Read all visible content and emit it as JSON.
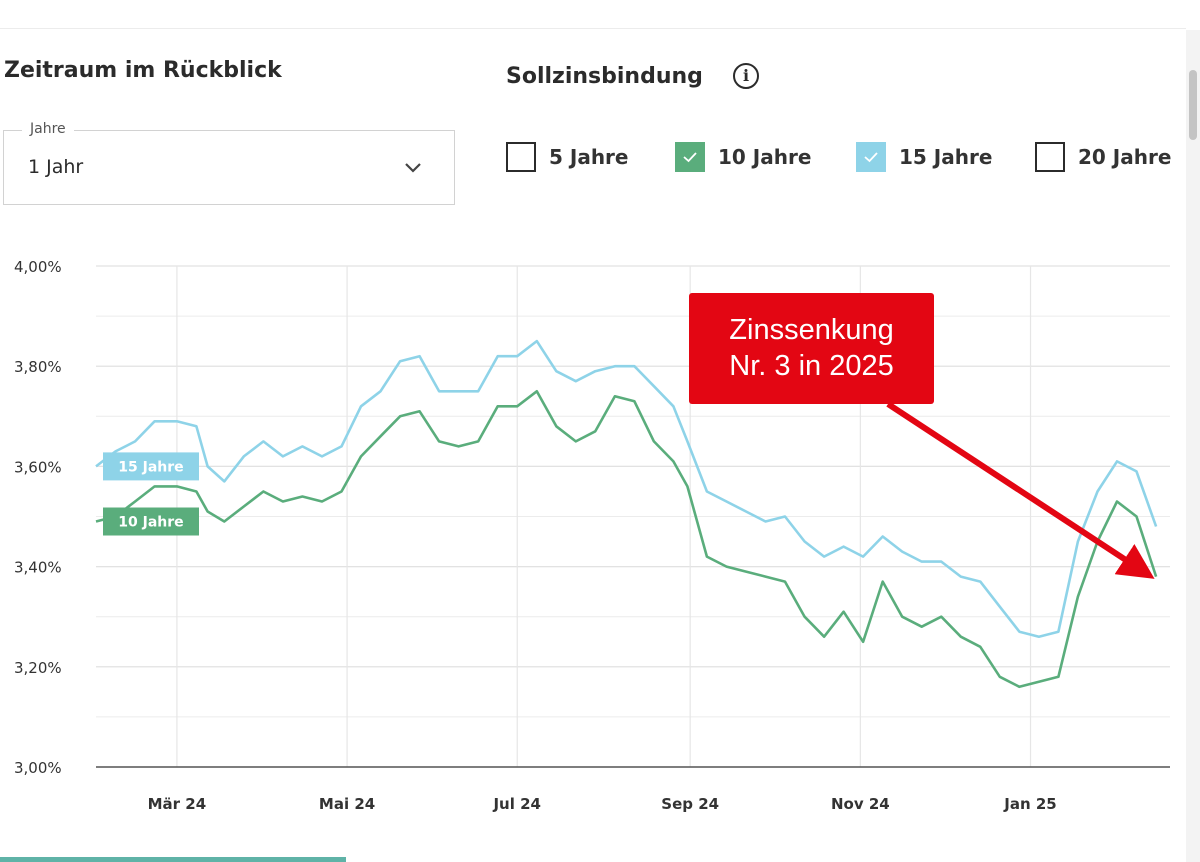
{
  "filters": {
    "period_title": "Zeitraum im Rückblick",
    "period_select": {
      "label": "Jahre",
      "value": "1 Jahr"
    },
    "fixation_title": "Sollzinsbindung",
    "info_icon": "info-icon",
    "options": [
      {
        "label": "5 Jahre",
        "checked": false,
        "color": "#ffffff"
      },
      {
        "label": "10 Jahre",
        "checked": true,
        "color": "#5aad7c"
      },
      {
        "label": "15 Jahre",
        "checked": true,
        "color": "#8ed3e8"
      },
      {
        "label": "20 Jahre",
        "checked": false,
        "color": "#ffffff"
      }
    ]
  },
  "chart_data": {
    "type": "line",
    "title": "",
    "xlabel": "",
    "ylabel": "",
    "grid": true,
    "ylim": [
      3.0,
      4.0
    ],
    "yticks": [
      {
        "value": 3.0,
        "label": "3,00%"
      },
      {
        "value": 3.2,
        "label": "3,20%"
      },
      {
        "value": 3.4,
        "label": "3,40%"
      },
      {
        "value": 3.6,
        "label": "3,60%"
      },
      {
        "value": 3.8,
        "label": "3,80%"
      },
      {
        "value": 4.0,
        "label": "4,00%"
      }
    ],
    "xlim": [
      "2024-02-01",
      "2025-02-20"
    ],
    "xticks": [
      {
        "date": "2024-03-01",
        "label": "Mär 24"
      },
      {
        "date": "2024-05-01",
        "label": "Mai 24"
      },
      {
        "date": "2024-07-01",
        "label": "Jul 24"
      },
      {
        "date": "2024-09-01",
        "label": "Sep 24"
      },
      {
        "date": "2024-11-01",
        "label": "Nov 24"
      },
      {
        "date": "2025-01-01",
        "label": "Jan 25"
      }
    ],
    "series": [
      {
        "name": "15 Jahre",
        "color": "#8ed3e8",
        "points": [
          [
            "2024-02-01",
            3.6
          ],
          [
            "2024-02-08",
            3.63
          ],
          [
            "2024-02-15",
            3.65
          ],
          [
            "2024-02-22",
            3.69
          ],
          [
            "2024-03-01",
            3.69
          ],
          [
            "2024-03-08",
            3.68
          ],
          [
            "2024-03-12",
            3.6
          ],
          [
            "2024-03-18",
            3.57
          ],
          [
            "2024-03-25",
            3.62
          ],
          [
            "2024-04-01",
            3.65
          ],
          [
            "2024-04-08",
            3.62
          ],
          [
            "2024-04-15",
            3.64
          ],
          [
            "2024-04-22",
            3.62
          ],
          [
            "2024-04-29",
            3.64
          ],
          [
            "2024-05-06",
            3.72
          ],
          [
            "2024-05-13",
            3.75
          ],
          [
            "2024-05-20",
            3.81
          ],
          [
            "2024-05-27",
            3.82
          ],
          [
            "2024-06-03",
            3.75
          ],
          [
            "2024-06-10",
            3.75
          ],
          [
            "2024-06-17",
            3.75
          ],
          [
            "2024-06-24",
            3.82
          ],
          [
            "2024-07-01",
            3.82
          ],
          [
            "2024-07-08",
            3.85
          ],
          [
            "2024-07-15",
            3.79
          ],
          [
            "2024-07-22",
            3.77
          ],
          [
            "2024-07-29",
            3.79
          ],
          [
            "2024-08-05",
            3.8
          ],
          [
            "2024-08-12",
            3.8
          ],
          [
            "2024-08-19",
            3.76
          ],
          [
            "2024-08-26",
            3.72
          ],
          [
            "2024-08-31",
            3.65
          ],
          [
            "2024-09-07",
            3.55
          ],
          [
            "2024-09-14",
            3.53
          ],
          [
            "2024-09-21",
            3.51
          ],
          [
            "2024-09-28",
            3.49
          ],
          [
            "2024-10-05",
            3.5
          ],
          [
            "2024-10-12",
            3.45
          ],
          [
            "2024-10-19",
            3.42
          ],
          [
            "2024-10-26",
            3.44
          ],
          [
            "2024-11-02",
            3.42
          ],
          [
            "2024-11-09",
            3.46
          ],
          [
            "2024-11-16",
            3.43
          ],
          [
            "2024-11-23",
            3.41
          ],
          [
            "2024-11-30",
            3.41
          ],
          [
            "2024-12-07",
            3.38
          ],
          [
            "2024-12-14",
            3.37
          ],
          [
            "2024-12-21",
            3.32
          ],
          [
            "2024-12-28",
            3.27
          ],
          [
            "2025-01-04",
            3.26
          ],
          [
            "2025-01-11",
            3.27
          ],
          [
            "2025-01-18",
            3.45
          ],
          [
            "2025-01-25",
            3.55
          ],
          [
            "2025-02-01",
            3.61
          ],
          [
            "2025-02-08",
            3.59
          ],
          [
            "2025-02-15",
            3.48
          ]
        ]
      },
      {
        "name": "10 Jahre",
        "color": "#5aad7c",
        "points": [
          [
            "2024-02-01",
            3.49
          ],
          [
            "2024-02-08",
            3.5
          ],
          [
            "2024-02-15",
            3.53
          ],
          [
            "2024-02-22",
            3.56
          ],
          [
            "2024-03-01",
            3.56
          ],
          [
            "2024-03-08",
            3.55
          ],
          [
            "2024-03-12",
            3.51
          ],
          [
            "2024-03-18",
            3.49
          ],
          [
            "2024-03-25",
            3.52
          ],
          [
            "2024-04-01",
            3.55
          ],
          [
            "2024-04-08",
            3.53
          ],
          [
            "2024-04-15",
            3.54
          ],
          [
            "2024-04-22",
            3.53
          ],
          [
            "2024-04-29",
            3.55
          ],
          [
            "2024-05-06",
            3.62
          ],
          [
            "2024-05-13",
            3.66
          ],
          [
            "2024-05-20",
            3.7
          ],
          [
            "2024-05-27",
            3.71
          ],
          [
            "2024-06-03",
            3.65
          ],
          [
            "2024-06-10",
            3.64
          ],
          [
            "2024-06-17",
            3.65
          ],
          [
            "2024-06-24",
            3.72
          ],
          [
            "2024-07-01",
            3.72
          ],
          [
            "2024-07-08",
            3.75
          ],
          [
            "2024-07-15",
            3.68
          ],
          [
            "2024-07-22",
            3.65
          ],
          [
            "2024-07-29",
            3.67
          ],
          [
            "2024-08-05",
            3.74
          ],
          [
            "2024-08-12",
            3.73
          ],
          [
            "2024-08-19",
            3.65
          ],
          [
            "2024-08-26",
            3.61
          ],
          [
            "2024-08-31",
            3.56
          ],
          [
            "2024-09-07",
            3.42
          ],
          [
            "2024-09-14",
            3.4
          ],
          [
            "2024-09-21",
            3.39
          ],
          [
            "2024-09-28",
            3.38
          ],
          [
            "2024-10-05",
            3.37
          ],
          [
            "2024-10-12",
            3.3
          ],
          [
            "2024-10-19",
            3.26
          ],
          [
            "2024-10-26",
            3.31
          ],
          [
            "2024-11-02",
            3.25
          ],
          [
            "2024-11-09",
            3.37
          ],
          [
            "2024-11-16",
            3.3
          ],
          [
            "2024-11-23",
            3.28
          ],
          [
            "2024-11-30",
            3.3
          ],
          [
            "2024-12-07",
            3.26
          ],
          [
            "2024-12-14",
            3.24
          ],
          [
            "2024-12-21",
            3.18
          ],
          [
            "2024-12-28",
            3.16
          ],
          [
            "2025-01-04",
            3.17
          ],
          [
            "2025-01-11",
            3.18
          ],
          [
            "2025-01-18",
            3.34
          ],
          [
            "2025-01-25",
            3.45
          ],
          [
            "2025-02-01",
            3.53
          ],
          [
            "2025-02-08",
            3.5
          ],
          [
            "2025-02-15",
            3.38
          ]
        ]
      }
    ],
    "series_labels": [
      {
        "text": "15 Jahre",
        "color": "#8ed3e8"
      },
      {
        "text": "10 Jahre",
        "color": "#5aad7c"
      }
    ],
    "annotation": {
      "line1": "Zinssenkung",
      "line2": "Nr. 3 in 2025",
      "box_color": "#e30613",
      "text_color": "#ffffff",
      "points_to": [
        "2025-02-15",
        3.38
      ]
    }
  }
}
